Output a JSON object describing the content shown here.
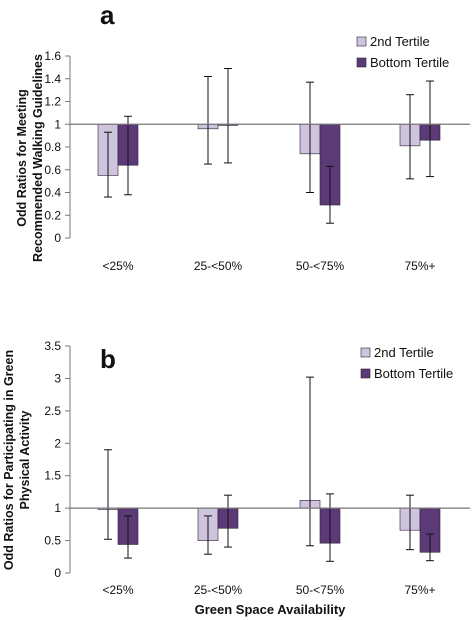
{
  "colors": {
    "second_tertile": "#cfc4de",
    "bottom_tertile": "#5c3a78",
    "bar_stroke": "#2a1e36",
    "axis": "#777777",
    "error": "#111111"
  },
  "xlabel": "Green Space Availability",
  "chart_data": [
    {
      "type": "bar",
      "panel_label": "a",
      "ylabel_lines": [
        "Odd Ratios for Meeting",
        "Recommended Walking Guidelines"
      ],
      "categories": [
        "<25%",
        "25-<50%",
        "50-<75%",
        "75%+"
      ],
      "yticks": [
        "0",
        "0.2",
        "0.4",
        "0.6",
        "0.8",
        "1",
        "1.2",
        "1.4",
        "1.6"
      ],
      "ylim": [
        0,
        1.6
      ],
      "baseline": 1,
      "legend": {
        "position": "top-right",
        "entries": [
          "2nd Tertile",
          "Bottom Tertile"
        ]
      },
      "series": [
        {
          "name": "2nd Tertile",
          "values": [
            0.55,
            0.96,
            0.74,
            0.81
          ],
          "ci_low": [
            0.36,
            0.65,
            0.4,
            0.52
          ],
          "ci_high": [
            0.93,
            1.42,
            1.37,
            1.26
          ]
        },
        {
          "name": "Bottom Tertile",
          "values": [
            0.64,
            0.99,
            0.29,
            0.86
          ],
          "ci_low": [
            0.38,
            0.66,
            0.13,
            0.54
          ],
          "ci_high": [
            1.07,
            1.49,
            0.63,
            1.38
          ]
        }
      ]
    },
    {
      "type": "bar",
      "panel_label": "b",
      "ylabel_lines": [
        "Odd Ratios for Participating in Green",
        "Physical Activity"
      ],
      "categories": [
        "<25%",
        "25-<50%",
        "50-<75%",
        "75%+"
      ],
      "yticks": [
        "0",
        "0.5",
        "1",
        "1.5",
        "2",
        "2.5",
        "3",
        "3.5"
      ],
      "ylim": [
        0,
        3.5
      ],
      "baseline": 1,
      "legend": {
        "position": "top-right",
        "entries": [
          "2nd Tertile",
          "Bottom Tertile"
        ]
      },
      "series": [
        {
          "name": "2nd Tertile",
          "values": [
            0.98,
            0.5,
            1.12,
            0.66
          ],
          "ci_low": [
            0.52,
            0.29,
            0.42,
            0.36
          ],
          "ci_high": [
            1.9,
            0.88,
            3.02,
            1.2
          ]
        },
        {
          "name": "Bottom Tertile",
          "values": [
            0.44,
            0.69,
            0.46,
            0.32
          ],
          "ci_low": [
            0.23,
            0.4,
            0.18,
            0.19
          ],
          "ci_high": [
            0.88,
            1.2,
            1.22,
            0.6
          ]
        }
      ]
    }
  ]
}
